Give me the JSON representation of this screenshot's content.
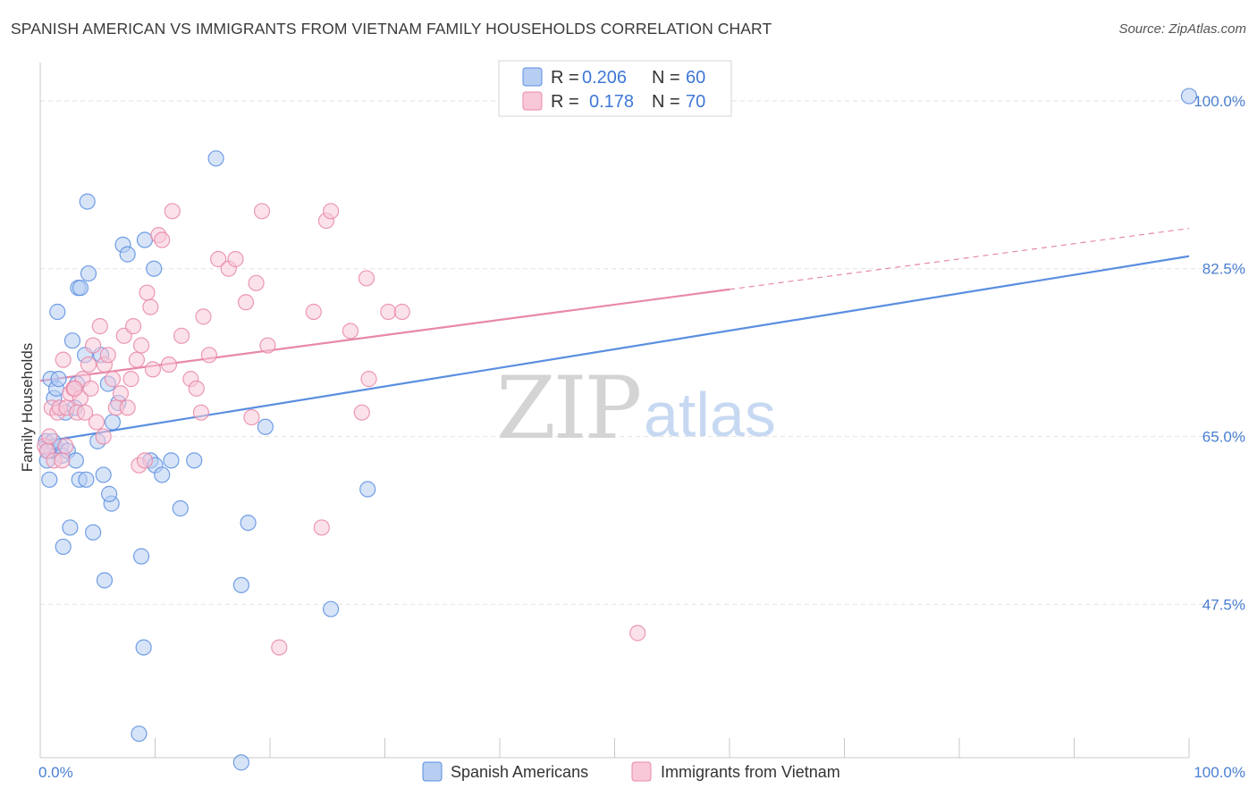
{
  "header": {
    "title": "SPANISH AMERICAN VS IMMIGRANTS FROM VIETNAM FAMILY HOUSEHOLDS CORRELATION CHART",
    "source": "Source: ZipAtlas.com"
  },
  "watermark": {
    "zip": "ZIP",
    "atlas": "atlas"
  },
  "legend": {
    "r_label": "R =",
    "n_label": "N =",
    "rows": [
      {
        "r": "0.206",
        "n": "60"
      },
      {
        "r": "0.178",
        "n": "70"
      }
    ]
  },
  "chart_data": {
    "type": "scatter",
    "title": "SPANISH AMERICAN VS IMMIGRANTS FROM VIETNAM FAMILY HOUSEHOLDS CORRELATION CHART",
    "xlabel": "",
    "ylabel": "Family Households",
    "xlim": [
      0,
      100
    ],
    "ylim": [
      31.5,
      104
    ],
    "x_tick_labels": [
      "0.0%",
      "100.0%"
    ],
    "y_ticks": [
      47.5,
      65.0,
      82.5,
      100.0
    ],
    "y_tick_labels": [
      "47.5%",
      "65.0%",
      "82.5%",
      "100.0%"
    ],
    "grid": true,
    "legend_position": "top-center",
    "series": [
      {
        "name": "Spanish Americans",
        "color": "#5a8ee0",
        "fill": "#b7cdf2",
        "r": 0.206,
        "n": 60,
        "trend": {
          "x0": 0,
          "y0": 64.4,
          "x1": 100,
          "y1": 83.8,
          "solid_to": 100
        },
        "points": [
          [
            0.5,
            64.5
          ],
          [
            0.6,
            62.5
          ],
          [
            0.8,
            60.5
          ],
          [
            0.9,
            71.0
          ],
          [
            1.0,
            63.5
          ],
          [
            1.2,
            69.0
          ],
          [
            1.3,
            64.0
          ],
          [
            1.4,
            70.0
          ],
          [
            1.5,
            78.0
          ],
          [
            1.6,
            71.0
          ],
          [
            1.8,
            64.0
          ],
          [
            1.9,
            63.0
          ],
          [
            2.0,
            53.5
          ],
          [
            2.2,
            67.5
          ],
          [
            2.4,
            63.5
          ],
          [
            2.6,
            55.5
          ],
          [
            2.8,
            75.0
          ],
          [
            3.0,
            68.0
          ],
          [
            3.2,
            70.5
          ],
          [
            3.3,
            80.5
          ],
          [
            3.4,
            60.5
          ],
          [
            3.5,
            80.5
          ],
          [
            3.9,
            73.5
          ],
          [
            4.0,
            60.5
          ],
          [
            4.1,
            89.5
          ],
          [
            4.2,
            82.0
          ],
          [
            4.6,
            55.0
          ],
          [
            5.0,
            64.5
          ],
          [
            5.5,
            61.0
          ],
          [
            5.3,
            73.5
          ],
          [
            5.6,
            50.0
          ],
          [
            5.9,
            70.5
          ],
          [
            6.2,
            58.0
          ],
          [
            6.3,
            66.5
          ],
          [
            6.8,
            68.5
          ],
          [
            7.2,
            85.0
          ],
          [
            7.6,
            84.0
          ],
          [
            8.6,
            34.0
          ],
          [
            8.8,
            52.5
          ],
          [
            9.0,
            43.0
          ],
          [
            9.1,
            85.5
          ],
          [
            9.6,
            62.5
          ],
          [
            9.9,
            82.5
          ],
          [
            10.0,
            62.0
          ],
          [
            10.6,
            61.0
          ],
          [
            11.4,
            62.5
          ],
          [
            13.4,
            62.5
          ],
          [
            15.3,
            94.0
          ],
          [
            17.5,
            31.0
          ],
          [
            17.5,
            49.5
          ],
          [
            18.1,
            56.0
          ],
          [
            19.6,
            66.0
          ],
          [
            25.3,
            47.0
          ],
          [
            28.5,
            59.5
          ],
          [
            100.0,
            100.5
          ],
          [
            0.7,
            63.5
          ],
          [
            1.1,
            64.5
          ],
          [
            3.1,
            62.5
          ],
          [
            6.0,
            59.0
          ],
          [
            12.2,
            57.5
          ]
        ]
      },
      {
        "name": "Immigrants from Vietnam",
        "color": "#e888a7",
        "fill": "#f8c8d8",
        "r": 0.178,
        "n": 70,
        "trend": {
          "x0": 0,
          "y0": 70.8,
          "x1": 100,
          "y1": 86.7,
          "solid_to": 60
        },
        "points": [
          [
            0.4,
            64.0
          ],
          [
            0.6,
            63.5
          ],
          [
            0.8,
            65.0
          ],
          [
            1.0,
            68.0
          ],
          [
            1.2,
            62.5
          ],
          [
            1.5,
            67.5
          ],
          [
            1.7,
            68.0
          ],
          [
            1.9,
            62.5
          ],
          [
            2.0,
            73.0
          ],
          [
            2.2,
            64.0
          ],
          [
            2.3,
            68.0
          ],
          [
            2.6,
            69.5
          ],
          [
            2.9,
            70.0
          ],
          [
            3.2,
            67.5
          ],
          [
            3.5,
            69.0
          ],
          [
            3.7,
            71.0
          ],
          [
            3.9,
            67.5
          ],
          [
            4.2,
            72.5
          ],
          [
            4.4,
            70.0
          ],
          [
            4.6,
            74.5
          ],
          [
            4.9,
            66.5
          ],
          [
            5.2,
            76.5
          ],
          [
            5.6,
            72.5
          ],
          [
            5.5,
            65.0
          ],
          [
            5.9,
            73.5
          ],
          [
            6.3,
            71.0
          ],
          [
            6.6,
            68.0
          ],
          [
            7.0,
            69.5
          ],
          [
            7.3,
            75.5
          ],
          [
            7.6,
            68.0
          ],
          [
            7.9,
            71.0
          ],
          [
            8.1,
            76.5
          ],
          [
            8.4,
            73.0
          ],
          [
            8.6,
            62.0
          ],
          [
            8.8,
            74.5
          ],
          [
            9.1,
            62.5
          ],
          [
            9.3,
            80.0
          ],
          [
            9.6,
            78.5
          ],
          [
            9.8,
            72.0
          ],
          [
            10.3,
            86.0
          ],
          [
            10.6,
            85.5
          ],
          [
            11.2,
            72.5
          ],
          [
            11.5,
            88.5
          ],
          [
            12.3,
            75.5
          ],
          [
            13.1,
            71.0
          ],
          [
            13.6,
            70.0
          ],
          [
            14.0,
            67.5
          ],
          [
            14.2,
            77.5
          ],
          [
            14.7,
            73.5
          ],
          [
            15.5,
            83.5
          ],
          [
            16.4,
            82.5
          ],
          [
            17.0,
            83.5
          ],
          [
            17.9,
            79.0
          ],
          [
            18.8,
            81.0
          ],
          [
            18.4,
            67.0
          ],
          [
            19.3,
            88.5
          ],
          [
            19.8,
            74.5
          ],
          [
            20.8,
            43.0
          ],
          [
            23.8,
            78.0
          ],
          [
            24.5,
            55.5
          ],
          [
            24.9,
            87.5
          ],
          [
            25.3,
            88.5
          ],
          [
            27.0,
            76.0
          ],
          [
            28.0,
            67.5
          ],
          [
            28.4,
            81.5
          ],
          [
            28.6,
            71.0
          ],
          [
            30.3,
            78.0
          ],
          [
            31.5,
            78.0
          ],
          [
            52.0,
            44.5
          ],
          [
            3.0,
            70.0
          ]
        ]
      }
    ]
  }
}
